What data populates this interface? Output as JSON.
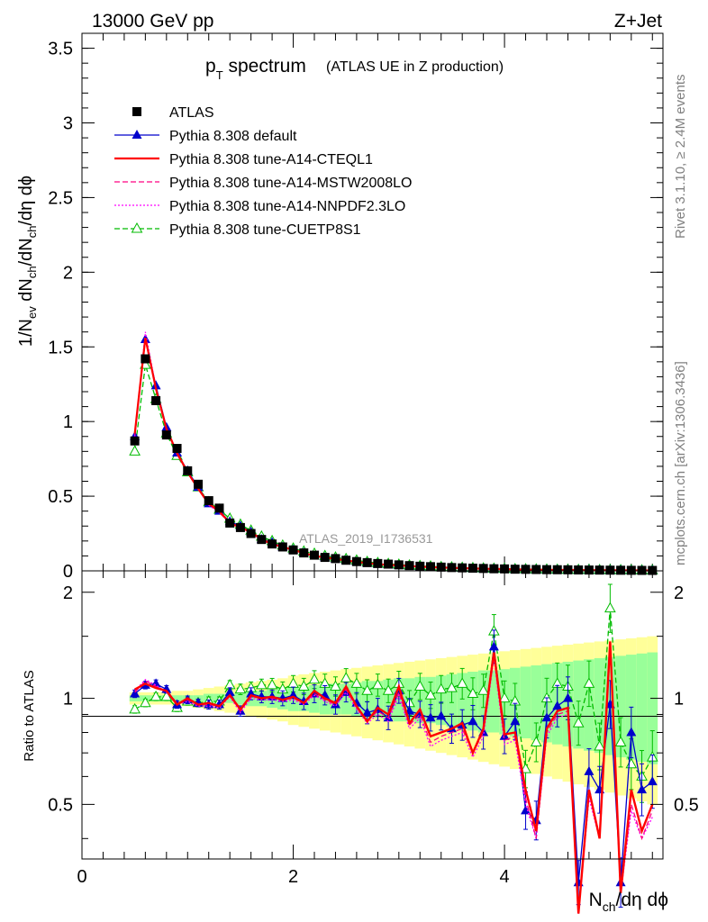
{
  "header": {
    "left": "13000 GeV pp",
    "right": "Z+Jet"
  },
  "side_labels": {
    "rivet": "Rivet 3.1.10, ≥ 2.4M events",
    "mcplots": "mcplots.cern.ch [arXiv:1306.3436]"
  },
  "chart_data": [
    {
      "type": "line",
      "title": {
        "main": "p",
        "sub": "T",
        "rest": " spectrum",
        "detail": "(ATLAS UE in Z production)"
      },
      "watermark": "ATLAS_2019_I1736531",
      "ylabel": "1/N_ev dN_ch/dN_ch/dη dϕ",
      "xlim": [
        0,
        5.5
      ],
      "ylim": [
        0,
        3.6
      ],
      "x_ticks": [
        0,
        2,
        4
      ],
      "y_ticks": [
        {
          "v": 0,
          "label": "0"
        },
        {
          "v": 0.5,
          "label": "0.5"
        },
        {
          "v": 1,
          "label": "1"
        },
        {
          "v": 1.5,
          "label": "1.5"
        },
        {
          "v": 2,
          "label": "2"
        },
        {
          "v": 2.5,
          "label": "2.5"
        },
        {
          "v": 3,
          "label": "3"
        },
        {
          "v": 3.5,
          "label": "3.5"
        }
      ],
      "x": [
        0.5,
        0.6,
        0.7,
        0.8,
        0.9,
        1.0,
        1.1,
        1.2,
        1.3,
        1.4,
        1.5,
        1.6,
        1.7,
        1.8,
        1.9,
        2.0,
        2.1,
        2.2,
        2.3,
        2.4,
        2.5,
        2.6,
        2.7,
        2.8,
        2.9,
        3.0,
        3.1,
        3.2,
        3.3,
        3.4,
        3.5,
        3.6,
        3.7,
        3.8,
        3.9,
        4.0,
        4.1,
        4.2,
        4.3,
        4.4,
        4.5,
        4.6,
        4.7,
        4.8,
        4.9,
        5.0,
        5.1,
        5.2,
        5.3,
        5.4
      ],
      "legend": {
        "position": "top-left",
        "entries": [
          {
            "label": "ATLAS",
            "series": "ATLAS"
          },
          {
            "label": "Pythia 8.308 default",
            "series": "default"
          },
          {
            "label": "Pythia 8.308 tune-A14-CTEQL1",
            "series": "cteql1"
          },
          {
            "label": "Pythia 8.308 tune-A14-MSTW2008LO",
            "series": "mstw"
          },
          {
            "label": "Pythia 8.308 tune-A14-NNPDF2.3LO",
            "series": "nnpdf"
          },
          {
            "label": "Pythia 8.308 tune-CUETP8S1",
            "series": "cuetp"
          }
        ]
      },
      "series": [
        {
          "name": "ATLAS",
          "color": "#000000",
          "marker": "square",
          "values": [
            0.87,
            1.42,
            1.14,
            0.91,
            0.82,
            0.67,
            0.58,
            0.47,
            0.42,
            0.32,
            0.29,
            0.25,
            0.21,
            0.18,
            0.16,
            0.14,
            0.12,
            0.105,
            0.09,
            0.082,
            0.071,
            0.062,
            0.055,
            0.049,
            0.045,
            0.04,
            0.035,
            0.031,
            0.028,
            0.025,
            0.022,
            0.02,
            0.018,
            0.016,
            0.014,
            0.013,
            0.011,
            0.01,
            0.009,
            0.008,
            0.0075,
            0.007,
            0.006,
            0.0055,
            0.005,
            0.0045,
            0.004,
            0.0035,
            0.003,
            0.0028
          ]
        },
        {
          "name": "default",
          "color": "#0000cc",
          "marker": "triangle-filled",
          "values": [
            0.9,
            1.55,
            1.24,
            0.96,
            0.79,
            0.67,
            0.56,
            0.45,
            0.4,
            0.33,
            0.3,
            0.26,
            0.21,
            0.19,
            0.16,
            0.14,
            0.12,
            0.1,
            0.09,
            0.08,
            0.07,
            0.06,
            0.052,
            0.045,
            0.04,
            0.036,
            0.032,
            0.028,
            0.025,
            0.022,
            0.02,
            0.018,
            0.016,
            0.014,
            0.013,
            0.012,
            0.01,
            0.009,
            0.008,
            0.007,
            0.0065,
            0.006,
            0.0055,
            0.005,
            0.0045,
            0.004,
            0.0037,
            0.0033,
            0.003,
            0.0027
          ]
        },
        {
          "name": "cteql1",
          "color": "#ff0000",
          "marker": "none",
          "dash": "",
          "values": [
            0.92,
            1.56,
            1.22,
            0.95,
            0.79,
            0.66,
            0.55,
            0.45,
            0.4,
            0.32,
            0.29,
            0.26,
            0.21,
            0.18,
            0.16,
            0.14,
            0.12,
            0.1,
            0.09,
            0.08,
            0.07,
            0.06,
            0.052,
            0.045,
            0.04,
            0.036,
            0.032,
            0.028,
            0.025,
            0.022,
            0.02,
            0.018,
            0.016,
            0.014,
            0.013,
            0.012,
            0.01,
            0.009,
            0.008,
            0.007,
            0.0065,
            0.006,
            0.0055,
            0.005,
            0.0045,
            0.004,
            0.0037,
            0.0033,
            0.003,
            0.0027
          ]
        },
        {
          "name": "mstw",
          "color": "#ff0080",
          "marker": "none",
          "dash": "6,3",
          "values": [
            0.91,
            1.56,
            1.22,
            0.95,
            0.78,
            0.66,
            0.55,
            0.45,
            0.39,
            0.32,
            0.29,
            0.26,
            0.21,
            0.18,
            0.16,
            0.14,
            0.12,
            0.1,
            0.09,
            0.08,
            0.07,
            0.06,
            0.052,
            0.045,
            0.04,
            0.036,
            0.032,
            0.028,
            0.025,
            0.022,
            0.02,
            0.018,
            0.016,
            0.014,
            0.013,
            0.012,
            0.01,
            0.009,
            0.008,
            0.007,
            0.0065,
            0.006,
            0.0055,
            0.005,
            0.0045,
            0.004,
            0.0037,
            0.0033,
            0.003,
            0.0027
          ]
        },
        {
          "name": "nnpdf",
          "color": "#ff00ff",
          "marker": "none",
          "dash": "2,2",
          "values": [
            0.9,
            1.6,
            1.23,
            0.95,
            0.78,
            0.66,
            0.55,
            0.44,
            0.39,
            0.32,
            0.29,
            0.25,
            0.21,
            0.18,
            0.16,
            0.14,
            0.12,
            0.1,
            0.09,
            0.08,
            0.07,
            0.06,
            0.052,
            0.045,
            0.04,
            0.036,
            0.032,
            0.028,
            0.025,
            0.022,
            0.02,
            0.018,
            0.016,
            0.014,
            0.013,
            0.012,
            0.01,
            0.009,
            0.008,
            0.007,
            0.0065,
            0.006,
            0.0055,
            0.005,
            0.0045,
            0.004,
            0.0037,
            0.0033,
            0.003,
            0.0027
          ]
        },
        {
          "name": "cuetp",
          "color": "#00bb00",
          "marker": "triangle-open",
          "dash": "6,3",
          "values": [
            0.8,
            1.38,
            1.15,
            0.92,
            0.77,
            0.66,
            0.56,
            0.46,
            0.41,
            0.35,
            0.31,
            0.27,
            0.23,
            0.2,
            0.17,
            0.15,
            0.13,
            0.115,
            0.1,
            0.09,
            0.08,
            0.07,
            0.06,
            0.053,
            0.047,
            0.042,
            0.037,
            0.033,
            0.03,
            0.026,
            0.024,
            0.021,
            0.019,
            0.017,
            0.015,
            0.014,
            0.012,
            0.011,
            0.01,
            0.009,
            0.008,
            0.0075,
            0.007,
            0.0065,
            0.006,
            0.0055,
            0.005,
            0.0045,
            0.004,
            0.0035
          ]
        }
      ]
    },
    {
      "type": "line",
      "ylabel": "Ratio to ATLAS",
      "xlabel": "N_ch/dη dϕ",
      "xlim": [
        0,
        5.5
      ],
      "ylim": [
        0.35,
        2.3
      ],
      "x_ticks": [
        0,
        2,
        4
      ],
      "y_ticks": [
        {
          "v": 0.5,
          "label": "0.5"
        },
        {
          "v": 1,
          "label": "1"
        },
        {
          "v": 2,
          "label": "2"
        }
      ],
      "reference": 1,
      "x": [
        0.5,
        0.6,
        0.7,
        0.8,
        0.9,
        1.0,
        1.1,
        1.2,
        1.3,
        1.4,
        1.5,
        1.6,
        1.7,
        1.8,
        1.9,
        2.0,
        2.1,
        2.2,
        2.3,
        2.4,
        2.5,
        2.6,
        2.7,
        2.8,
        2.9,
        3.0,
        3.1,
        3.2,
        3.3,
        3.4,
        3.5,
        3.6,
        3.7,
        3.8,
        3.9,
        4.0,
        4.1,
        4.2,
        4.3,
        4.4,
        4.5,
        4.6,
        4.7,
        4.8,
        4.9,
        5.0,
        5.1,
        5.2,
        5.3,
        5.4
      ],
      "bands": {
        "stat_color": "#99ff99",
        "total_color": "#ffff99",
        "stat": [
          0.02,
          0.02,
          0.02,
          0.02,
          0.02,
          0.02,
          0.02,
          0.03,
          0.03,
          0.03,
          0.04,
          0.05,
          0.05,
          0.06,
          0.07,
          0.08,
          0.08,
          0.09,
          0.1,
          0.1,
          0.1,
          0.11,
          0.12,
          0.12,
          0.13,
          0.14,
          0.14,
          0.15,
          0.15,
          0.16,
          0.17,
          0.18,
          0.19,
          0.2,
          0.2,
          0.21,
          0.22,
          0.23,
          0.24,
          0.25,
          0.26,
          0.27,
          0.28,
          0.29,
          0.3,
          0.31,
          0.32,
          0.33,
          0.34,
          0.35
        ],
        "total": [
          0.04,
          0.04,
          0.04,
          0.04,
          0.05,
          0.05,
          0.06,
          0.07,
          0.08,
          0.09,
          0.1,
          0.11,
          0.12,
          0.13,
          0.14,
          0.16,
          0.17,
          0.18,
          0.19,
          0.2,
          0.21,
          0.22,
          0.23,
          0.24,
          0.25,
          0.26,
          0.27,
          0.28,
          0.29,
          0.3,
          0.31,
          0.32,
          0.33,
          0.34,
          0.35,
          0.36,
          0.37,
          0.38,
          0.39,
          0.4,
          0.41,
          0.42,
          0.43,
          0.44,
          0.45,
          0.46,
          0.47,
          0.48,
          0.49,
          0.5
        ]
      },
      "series": [
        {
          "name": "default",
          "color": "#0000cc",
          "marker": "triangle-filled",
          "errors": true,
          "values": [
            1.03,
            1.09,
            1.1,
            1.06,
            0.96,
            0.99,
            0.97,
            0.96,
            0.96,
            1.04,
            0.92,
            1.03,
            1.01,
            1.01,
            1.0,
            1.02,
            0.98,
            1.03,
            1.02,
            0.96,
            1.04,
            0.97,
            0.91,
            0.93,
            0.88,
            1.05,
            0.92,
            0.9,
            0.88,
            0.89,
            0.82,
            0.84,
            0.86,
            0.8,
            1.4,
            0.78,
            0.86,
            0.48,
            0.45,
            0.88,
            0.95,
            1.0,
            0.3,
            0.62,
            0.55,
            0.96,
            0.3,
            0.8,
            0.55,
            0.58
          ]
        },
        {
          "name": "cteql1",
          "color": "#ff0000",
          "marker": "none",
          "dash": "",
          "values": [
            1.06,
            1.1,
            1.07,
            1.05,
            0.96,
            1.0,
            0.96,
            0.97,
            0.95,
            1.02,
            0.93,
            1.02,
            1.0,
            1.01,
            0.99,
            1.01,
            0.97,
            1.05,
            1.0,
            0.97,
            1.08,
            0.95,
            0.86,
            0.94,
            0.9,
            1.08,
            0.85,
            0.93,
            0.78,
            0.8,
            0.82,
            0.85,
            0.7,
            0.82,
            1.35,
            0.79,
            0.8,
            0.55,
            0.42,
            0.82,
            0.92,
            0.94,
            0.2,
            0.55,
            0.4,
            1.45,
            0.28,
            0.55,
            0.42,
            0.5
          ]
        },
        {
          "name": "mstw",
          "color": "#ff0080",
          "marker": "none",
          "dash": "6,3",
          "values": [
            1.04,
            1.12,
            1.08,
            1.05,
            0.97,
            0.99,
            0.96,
            0.96,
            0.95,
            1.02,
            0.92,
            1.01,
            1.0,
            1.0,
            0.99,
            1.0,
            0.97,
            1.03,
            0.99,
            0.96,
            1.06,
            0.94,
            0.86,
            0.92,
            0.88,
            1.04,
            0.84,
            0.9,
            0.75,
            0.78,
            0.8,
            0.82,
            0.7,
            0.8,
            1.32,
            0.76,
            0.78,
            0.52,
            0.4,
            0.8,
            0.9,
            0.92,
            0.2,
            0.55,
            0.4,
            1.4,
            0.28,
            0.5,
            0.4,
            0.48
          ]
        },
        {
          "name": "nnpdf",
          "color": "#ff00ff",
          "marker": "none",
          "dash": "2,2",
          "values": [
            1.05,
            1.13,
            1.09,
            1.04,
            0.96,
            0.98,
            0.95,
            0.95,
            0.94,
            1.01,
            0.91,
            1.0,
            0.99,
            0.99,
            0.98,
            0.99,
            0.96,
            1.02,
            0.98,
            0.95,
            1.04,
            0.93,
            0.85,
            0.9,
            0.86,
            1.02,
            0.82,
            0.88,
            0.73,
            0.76,
            0.78,
            0.8,
            0.68,
            0.78,
            1.3,
            0.74,
            0.76,
            0.5,
            0.4,
            0.78,
            0.88,
            0.9,
            0.2,
            0.52,
            0.4,
            1.38,
            0.28,
            0.48,
            0.4,
            0.46
          ]
        },
        {
          "name": "cuetp",
          "color": "#00bb00",
          "marker": "triangle-open",
          "dash": "6,3",
          "errors": true,
          "values": [
            0.93,
            0.97,
            1.01,
            1.01,
            0.94,
            0.98,
            0.97,
            0.98,
            0.98,
            1.09,
            1.06,
            1.07,
            1.09,
            1.09,
            1.06,
            1.1,
            1.08,
            1.13,
            1.1,
            1.08,
            1.14,
            1.1,
            1.05,
            1.09,
            1.05,
            1.1,
            0.97,
            1.08,
            1.02,
            1.06,
            1.07,
            1.1,
            1.03,
            1.05,
            1.55,
            1.0,
            0.98,
            0.63,
            0.75,
            1.0,
            1.1,
            1.08,
            0.85,
            1.1,
            0.73,
            1.8,
            0.75,
            0.65,
            0.6,
            0.68
          ]
        }
      ]
    }
  ]
}
